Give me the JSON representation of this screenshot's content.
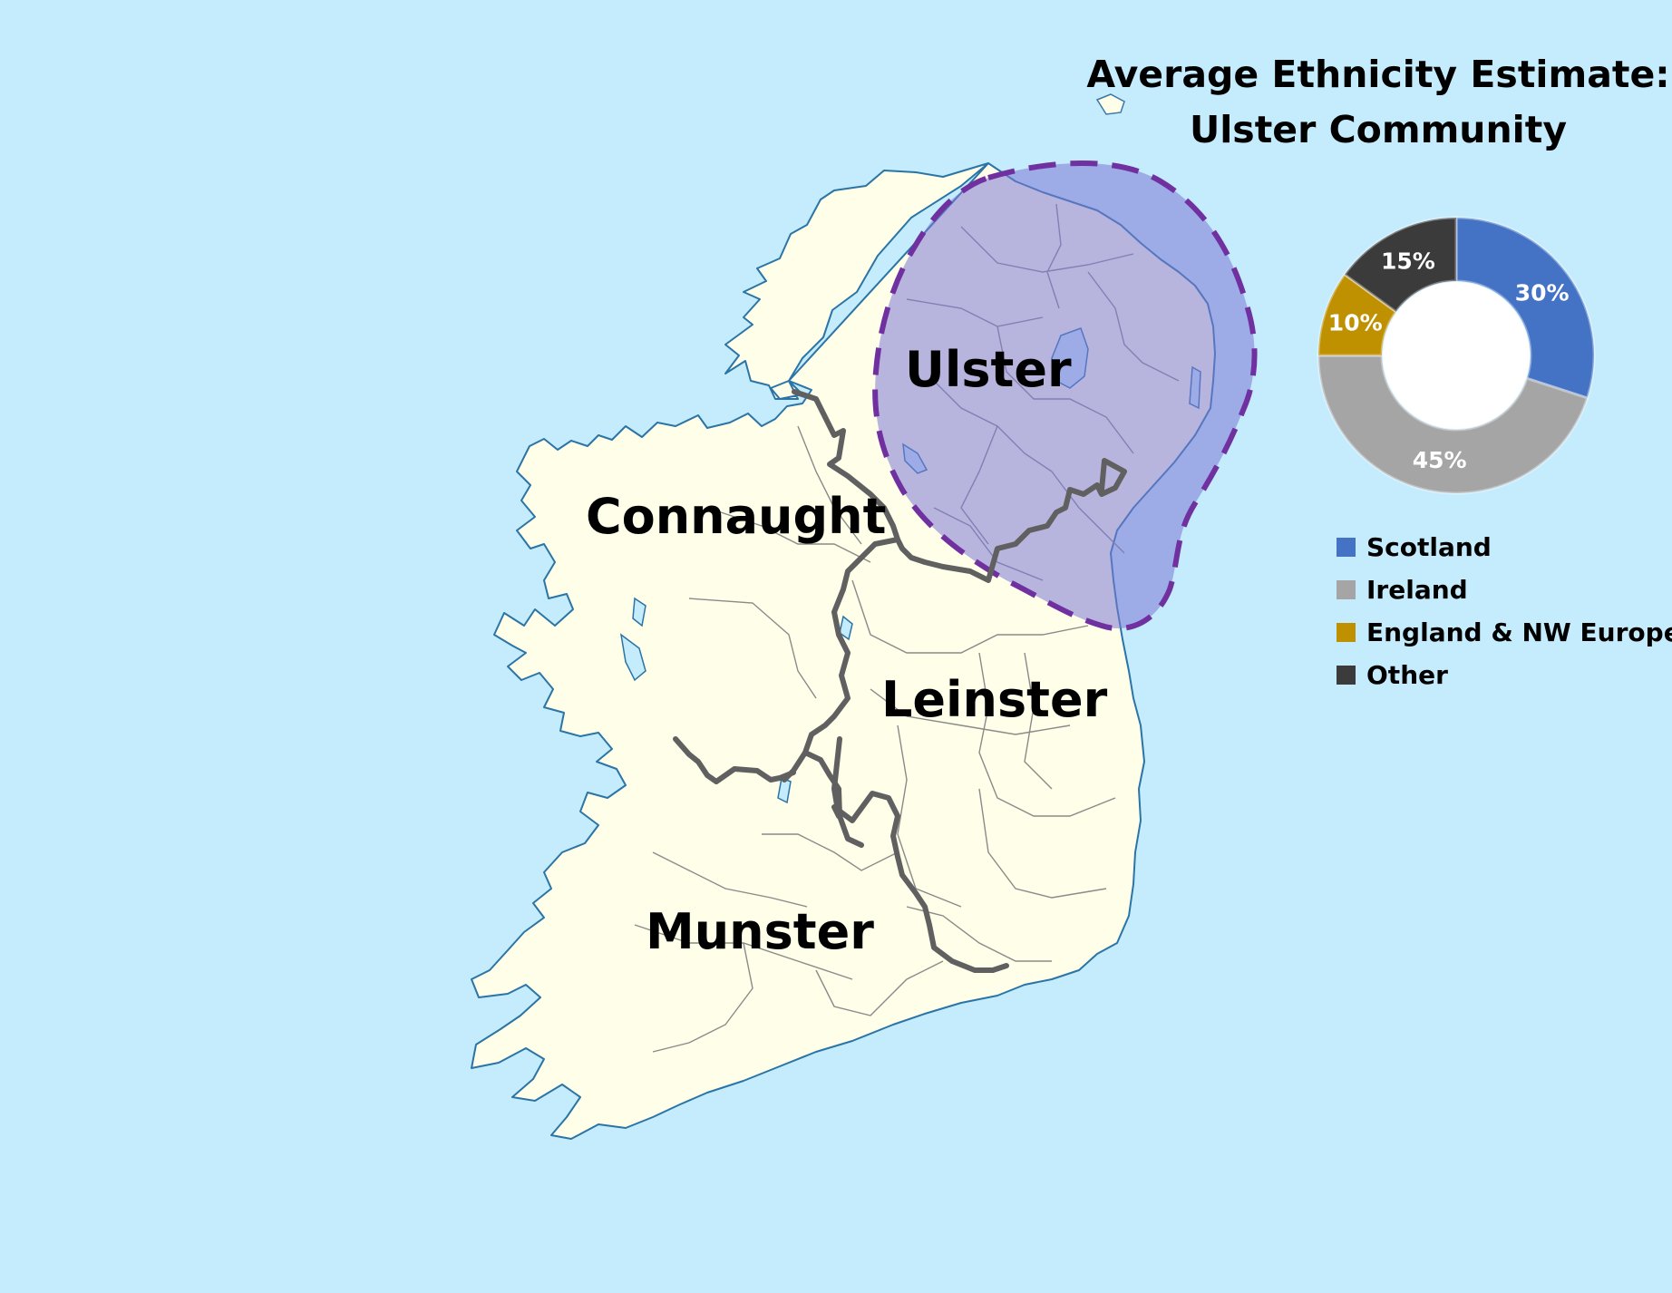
{
  "title": {
    "line1": "Average Ethnicity Estimate:",
    "line2": "Ulster Community"
  },
  "regions": [
    {
      "id": "ulster",
      "name": "Ulster"
    },
    {
      "id": "connaught",
      "name": "Connaught"
    },
    {
      "id": "leinster",
      "name": "Leinster"
    },
    {
      "id": "munster",
      "name": "Munster"
    }
  ],
  "highlight": {
    "region": "Ulster",
    "fill_color": "#7c78d6",
    "outline_color": "#7030a0"
  },
  "map_colors": {
    "sea": "#c5ecfd",
    "land": "#fefee9",
    "province_border": "#606060",
    "county_border": "#8a8a8a"
  },
  "chart_data": {
    "type": "pie",
    "style": "donut",
    "unit": "%",
    "slices": [
      {
        "label": "Scotland",
        "value": 30,
        "color": "#4472c4"
      },
      {
        "label": "Ireland",
        "value": 45,
        "color": "#a5a5a5"
      },
      {
        "label": "England & NW Europe",
        "value": 10,
        "color": "#bf9000"
      },
      {
        "label": "Other",
        "value": 15,
        "color": "#3b3b3b"
      }
    ],
    "legend_position": "below"
  }
}
